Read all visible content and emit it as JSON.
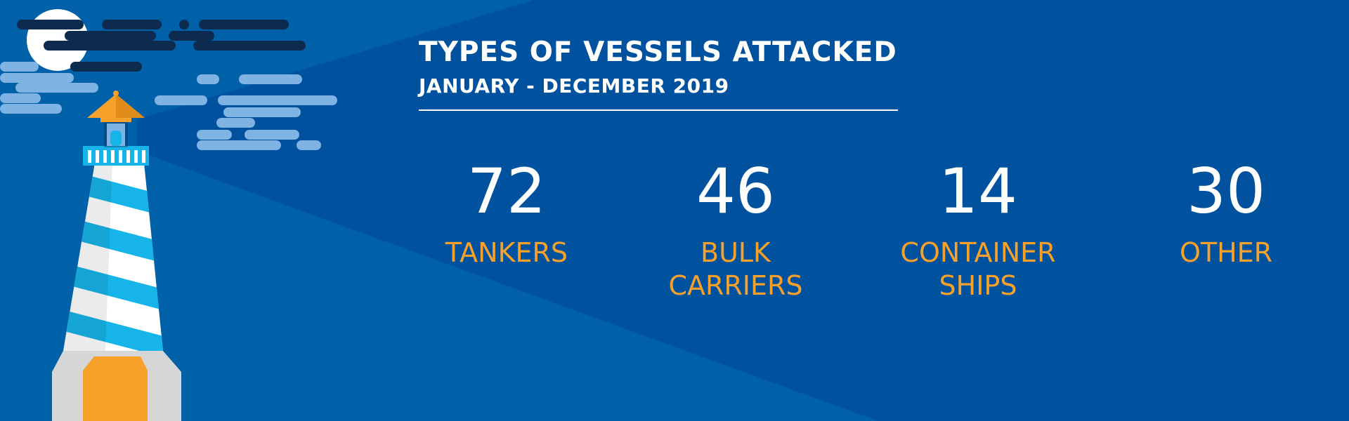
{
  "header": {
    "title": "TYPES OF VESSELS ATTACKED",
    "subtitle": "JANUARY - DECEMBER 2019"
  },
  "stats": [
    {
      "value": "72",
      "label": "TANKERS"
    },
    {
      "value": "46",
      "label": "BULK\nCARRIERS"
    },
    {
      "value": "14",
      "label": "CONTAINER\nSHIPS"
    },
    {
      "value": "30",
      "label": "OTHER"
    }
  ],
  "colors": {
    "background": "#0060a8",
    "beam": "#00529e",
    "accent": "#f7a12b",
    "stripe": "#16b4e8",
    "cloud_dark": "#0d2b4f",
    "cloud_light": "#7fb3e3",
    "text": "#ffffff"
  },
  "icons": [
    "lighthouse-icon",
    "moon-icon",
    "clouds-icon"
  ]
}
